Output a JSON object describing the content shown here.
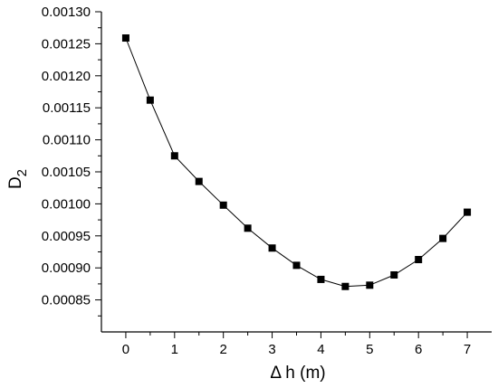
{
  "chart_data": {
    "type": "line",
    "xlabel": "Δ h  (m)",
    "ylabel": "D",
    "ylabel_subscript": "2",
    "xlim": [
      -0.5,
      7.5
    ],
    "ylim": [
      0.0008,
      0.0013
    ],
    "x_ticks": [
      "0",
      "1",
      "2",
      "3",
      "4",
      "5",
      "6",
      "7"
    ],
    "y_ticks": [
      "0.00085",
      "0.00090",
      "0.00095",
      "0.00100",
      "0.00105",
      "0.00110",
      "0.00115",
      "0.00120",
      "0.00125",
      "0.00130"
    ],
    "grid": false,
    "marker": "filled-square",
    "series": [
      {
        "x": [
          0,
          0.5,
          1,
          1.5,
          2,
          2.5,
          3,
          3.5,
          4,
          4.5,
          5,
          5.5,
          6,
          6.5,
          7
        ],
        "y": [
          0.001259,
          0.001162,
          0.001075,
          0.001035,
          0.000998,
          0.000962,
          0.000931,
          0.000904,
          0.000882,
          0.000871,
          0.000873,
          0.000889,
          0.000913,
          0.000946,
          0.000987
        ]
      }
    ]
  }
}
